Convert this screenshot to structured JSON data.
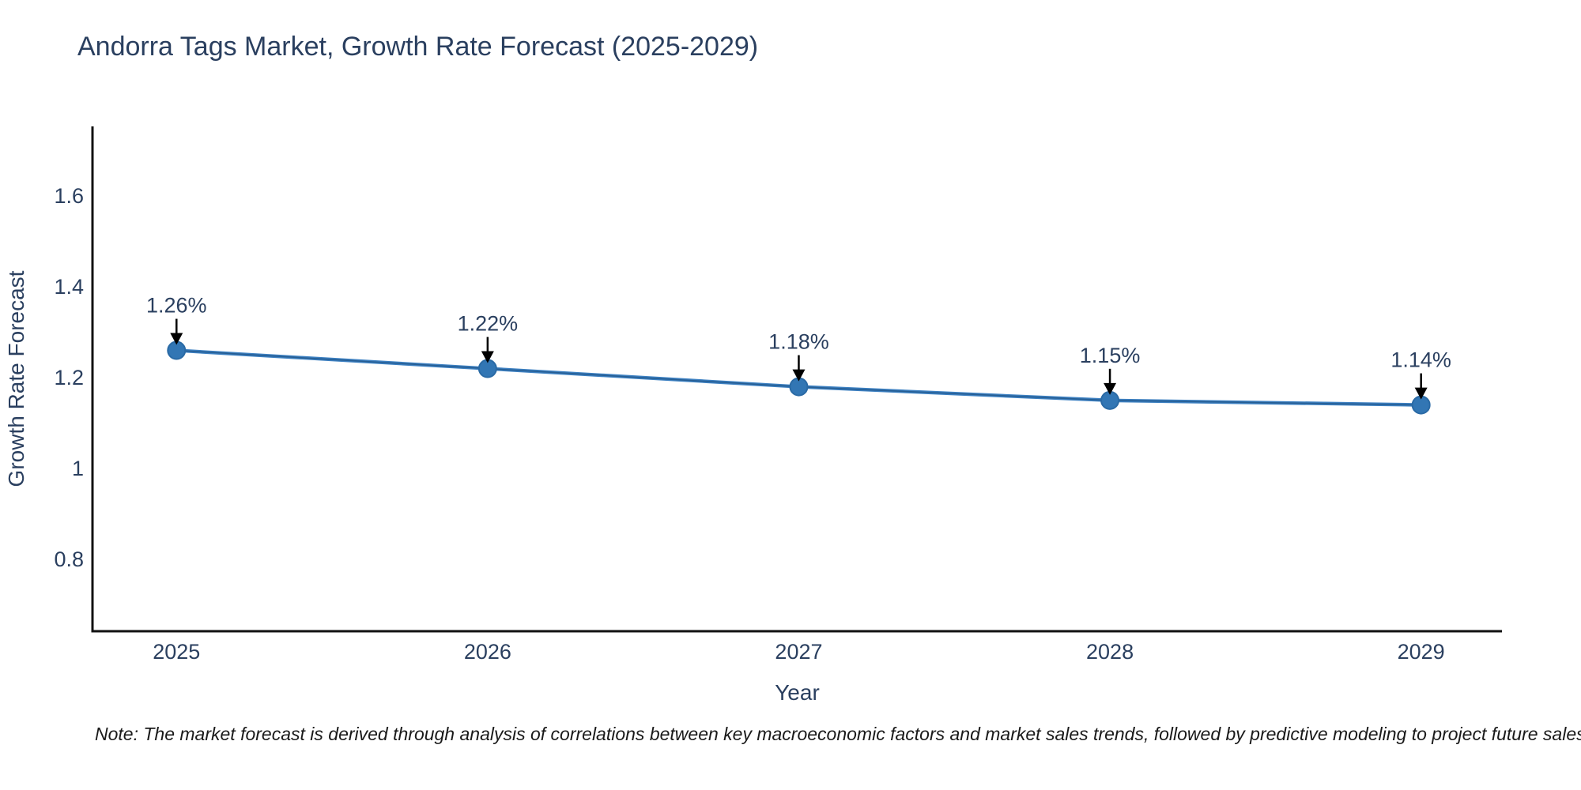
{
  "title": "Andorra Tags Market, Growth Rate Forecast (2025-2029)",
  "note": "Note: The market forecast is derived through analysis of correlations between key macroeconomic factors and market sales trends, followed by predictive modeling to project future sales",
  "chart_data": {
    "type": "line",
    "title": "Andorra Tags Market, Growth Rate Forecast (2025-2029)",
    "xlabel": "Year",
    "ylabel": "Growth Rate Forecast",
    "x": [
      2025,
      2026,
      2027,
      2028,
      2029
    ],
    "values": [
      1.26,
      1.22,
      1.18,
      1.15,
      1.14
    ],
    "point_labels": [
      "1.26%",
      "1.22%",
      "1.18%",
      "1.15%",
      "1.14%"
    ],
    "x_tick_labels": [
      "2025",
      "2026",
      "2027",
      "2028",
      "2029"
    ],
    "y_ticks": [
      0.8,
      1.0,
      1.2,
      1.4,
      1.6
    ],
    "y_tick_labels": [
      "0.8",
      "1",
      "1.2",
      "1.4",
      "1.6"
    ],
    "xlim": [
      2024.73,
      2029.26
    ],
    "ylim": [
      0.642,
      1.753
    ],
    "grid": false,
    "legend": "none",
    "annotation_style": "value label above point with downward black arrow",
    "colors": {
      "line": "#3d80c1",
      "line_core": "#265e94",
      "marker_fill": "#3276b4",
      "marker_edge": "#2a6aa5",
      "axis_line": "#111111",
      "tick_text": "#2a3f5f",
      "title_text": "#2a3f5f",
      "annotation_text": "#2a3f5f",
      "arrow": "#000000",
      "note_text": "#1a1a1a",
      "background": "#ffffff"
    }
  }
}
